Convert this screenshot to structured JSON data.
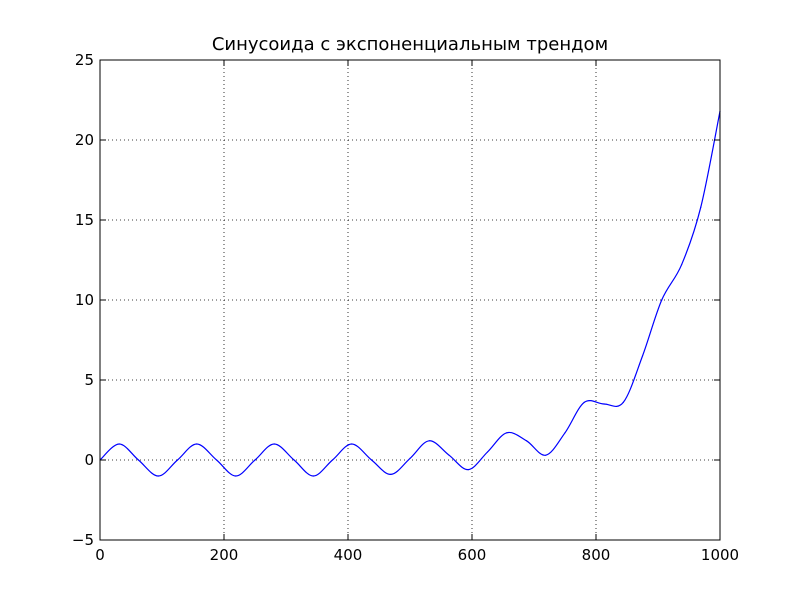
{
  "chart_data": {
    "type": "line",
    "title": "Синусоида с экспоненциальным трендом",
    "xlabel": "",
    "ylabel": "",
    "xlim": [
      0,
      1000
    ],
    "ylim": [
      -5,
      25
    ],
    "x_ticks": [
      0,
      200,
      400,
      600,
      800,
      1000
    ],
    "y_ticks": [
      -5,
      0,
      5,
      10,
      15,
      20,
      25
    ],
    "x_tick_labels": [
      "0",
      "200",
      "400",
      "600",
      "800",
      "1000"
    ],
    "y_tick_labels": [
      "−5",
      "0",
      "5",
      "10",
      "15",
      "20",
      "25"
    ],
    "grid": true,
    "legend": "none",
    "series": [
      {
        "color": "#0000ff",
        "x": [
          0,
          31,
          62,
          94,
          125,
          156,
          188,
          219,
          250,
          281,
          313,
          344,
          375,
          406,
          438,
          469,
          500,
          531,
          563,
          594,
          625,
          656,
          688,
          719,
          750,
          781,
          813,
          844,
          875,
          906,
          938,
          969,
          1000
        ],
        "y": [
          0.0,
          1.0,
          0.0,
          -1.0,
          0.0,
          1.0,
          0.0,
          -1.0,
          0.0,
          1.0,
          0.0,
          -1.0,
          0.0,
          1.0,
          0.0,
          -0.9,
          0.1,
          1.2,
          0.3,
          -0.6,
          0.5,
          1.7,
          1.2,
          0.3,
          1.7,
          3.6,
          3.5,
          3.6,
          6.5,
          10.0,
          12.2,
          15.8,
          21.8
        ]
      }
    ]
  }
}
